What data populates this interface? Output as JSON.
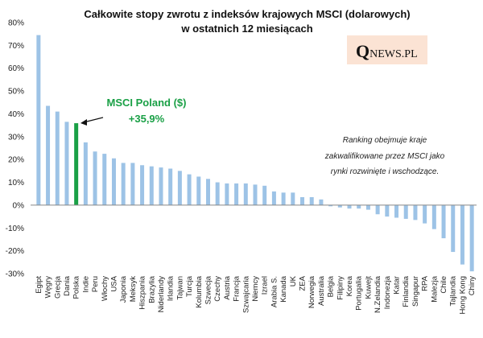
{
  "chart_data": {
    "type": "bar",
    "title": "Całkowite stopy zwrotu z indeksów krajowych MSCI (dolarowych)",
    "subtitle": "w ostatnich 12 miesiącach",
    "xlabel": "",
    "ylabel": "",
    "ylim": [
      -30,
      80
    ],
    "yticks": [
      -30,
      -20,
      -10,
      0,
      10,
      20,
      30,
      40,
      50,
      60,
      70,
      80
    ],
    "ytick_labels": [
      "-30%",
      "-20%",
      "-10%",
      "0%",
      "10%",
      "20%",
      "30%",
      "40%",
      "50%",
      "60%",
      "70%",
      "80%"
    ],
    "grid": false,
    "categories": [
      "Egipt",
      "Węgry",
      "Grecja",
      "Dania",
      "Polska",
      "Indie",
      "Peru",
      "Włochy",
      "USA",
      "Japonia",
      "Meksyk",
      "Hiszpania",
      "Brazylia",
      "Niderlandy",
      "Irlandia",
      "Tajwan",
      "Turcja",
      "Kolumbia",
      "Szwecja",
      "Czechy",
      "Austria",
      "Francja",
      "Szwajcaria",
      "Niemcy",
      "Izrael",
      "Arabia S.",
      "Kanada",
      "UK",
      "ZEA",
      "Norwegia",
      "Australia",
      "Belgia",
      "Filipiny",
      "Korea",
      "Portugalia",
      "Kuwejt",
      "N.Zelandia",
      "Indonezja",
      "Katar",
      "Finlandia",
      "Singapur",
      "RPA",
      "Malezja",
      "Chile",
      "Tajlandia",
      "Hong Kong",
      "Chiny"
    ],
    "values": [
      74.5,
      43.5,
      41,
      36.5,
      35.9,
      27.5,
      23.5,
      22.5,
      20.5,
      18.5,
      18.5,
      17.5,
      17,
      16.5,
      16,
      15,
      13.5,
      12.5,
      11.5,
      10,
      9.5,
      9.5,
      9.5,
      9,
      8.5,
      6,
      5.5,
      5.5,
      3.5,
      3.5,
      2.5,
      -0.5,
      -1,
      -1.5,
      -1.5,
      -2,
      -4,
      -5,
      -5.5,
      -6,
      -6.5,
      -8,
      -10.5,
      -14.5,
      -20.5,
      -26,
      -29
    ],
    "highlight_category": "Polska",
    "colors": {
      "bar": "#9dc3e6",
      "highlight": "#1aa046",
      "axis": "#888888",
      "text": "#111111"
    },
    "annotation": {
      "label": "MSCI Poland ($)",
      "value": "+35,9%"
    },
    "note": [
      "Ranking obejmuje kraje",
      "zakwalifikowane przez MSCI jako",
      "rynki  rozwinięte i wschodzące."
    ]
  },
  "logo": {
    "q": "Q",
    "rest": "NEWS.PL",
    "bg": "#fbe3d4"
  }
}
